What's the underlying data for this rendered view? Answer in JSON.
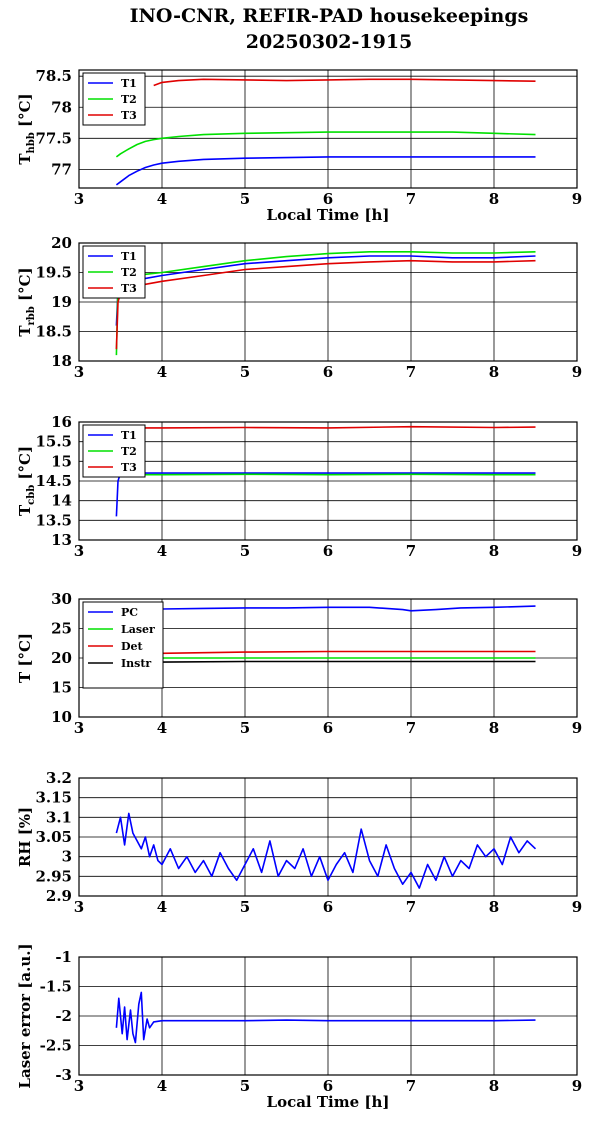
{
  "figure": {
    "title_line1": "INO-CNR, REFIR-PAD housekeepings",
    "title_line2": "20250302-1915"
  },
  "chart_data": [
    {
      "type": "line",
      "id": "hbb",
      "ylabel_main": "T",
      "ylabel_sub": "hbb",
      "ylabel_unit": " [°C]",
      "xlabel": "Local Time [h]",
      "xlim": [
        3,
        9
      ],
      "ylim": [
        76.7,
        78.6
      ],
      "xticks": [
        3,
        4,
        5,
        6,
        7,
        8,
        9
      ],
      "yticks": [
        77,
        77.5,
        78,
        78.5
      ],
      "ytick_labels": [
        "77",
        "77.5",
        "78",
        "78.5"
      ],
      "grid": true,
      "legend": "top-left",
      "series": [
        {
          "name": "T1",
          "color": "#0000ff",
          "x": [
            3.45,
            3.5,
            3.6,
            3.7,
            3.8,
            3.9,
            4.0,
            4.2,
            4.5,
            5.0,
            5.5,
            6.0,
            6.5,
            7.0,
            7.5,
            8.0,
            8.5
          ],
          "y": [
            76.75,
            76.8,
            76.9,
            76.97,
            77.03,
            77.07,
            77.1,
            77.13,
            77.16,
            77.18,
            77.19,
            77.2,
            77.2,
            77.2,
            77.2,
            77.2,
            77.2
          ]
        },
        {
          "name": "T2",
          "color": "#00e000",
          "x": [
            3.45,
            3.5,
            3.6,
            3.7,
            3.8,
            3.9,
            4.0,
            4.2,
            4.5,
            5.0,
            5.5,
            6.0,
            6.5,
            7.0,
            7.5,
            8.0,
            8.5
          ],
          "y": [
            77.2,
            77.25,
            77.33,
            77.4,
            77.45,
            77.48,
            77.5,
            77.53,
            77.56,
            77.58,
            77.59,
            77.6,
            77.6,
            77.6,
            77.6,
            77.58,
            77.56
          ]
        },
        {
          "name": "T3",
          "color": "#e00000",
          "x": [
            3.9,
            4.0,
            4.2,
            4.5,
            5.0,
            5.5,
            6.0,
            6.5,
            7.0,
            7.5,
            8.0,
            8.5
          ],
          "y": [
            78.35,
            78.4,
            78.43,
            78.45,
            78.44,
            78.43,
            78.44,
            78.45,
            78.45,
            78.44,
            78.43,
            78.42
          ]
        }
      ]
    },
    {
      "type": "line",
      "id": "rbb",
      "ylabel_main": "T",
      "ylabel_sub": "rbb",
      "ylabel_unit": " [°C]",
      "xlabel": "",
      "xlim": [
        3,
        9
      ],
      "ylim": [
        18,
        20
      ],
      "xticks": [
        3,
        4,
        5,
        6,
        7,
        8,
        9
      ],
      "yticks": [
        18,
        18.5,
        19,
        19.5,
        20
      ],
      "ytick_labels": [
        "18",
        "18.5",
        "19",
        "19.5",
        "20"
      ],
      "grid": true,
      "legend": "top-left",
      "series": [
        {
          "name": "T1",
          "color": "#0000ff",
          "x": [
            3.45,
            3.47,
            3.5,
            3.6,
            3.8,
            4.0,
            4.5,
            5.0,
            5.5,
            6.0,
            6.5,
            7.0,
            7.5,
            8.0,
            8.5
          ],
          "y": [
            18.6,
            19.2,
            19.3,
            19.35,
            19.4,
            19.45,
            19.55,
            19.65,
            19.7,
            19.75,
            19.78,
            19.78,
            19.75,
            19.75,
            19.78
          ]
        },
        {
          "name": "T2",
          "color": "#00e000",
          "x": [
            3.45,
            3.47,
            3.5,
            3.6,
            3.8,
            4.0,
            4.5,
            5.0,
            5.5,
            6.0,
            6.5,
            7.0,
            7.5,
            8.0,
            8.5
          ],
          "y": [
            18.1,
            19.3,
            19.4,
            19.45,
            19.47,
            19.5,
            19.6,
            19.7,
            19.77,
            19.82,
            19.85,
            19.85,
            19.83,
            19.83,
            19.85
          ]
        },
        {
          "name": "T3",
          "color": "#e00000",
          "x": [
            3.45,
            3.47,
            3.5,
            3.6,
            3.8,
            4.0,
            4.5,
            5.0,
            5.5,
            6.0,
            6.5,
            7.0,
            7.5,
            8.0,
            8.5
          ],
          "y": [
            18.2,
            19.0,
            19.15,
            19.22,
            19.3,
            19.35,
            19.45,
            19.55,
            19.6,
            19.65,
            19.68,
            19.7,
            19.68,
            19.68,
            19.7
          ]
        }
      ]
    },
    {
      "type": "line",
      "id": "cbb",
      "ylabel_main": "T",
      "ylabel_sub": "cbb",
      "ylabel_unit": " [°C]",
      "xlabel": "",
      "xlim": [
        3,
        9
      ],
      "ylim": [
        13,
        16
      ],
      "xticks": [
        3,
        4,
        5,
        6,
        7,
        8,
        9
      ],
      "yticks": [
        13,
        13.5,
        14,
        14.5,
        15,
        15.5,
        16
      ],
      "ytick_labels": [
        "13",
        "13.5",
        "14",
        "14.5",
        "15",
        "15.5",
        "16"
      ],
      "grid": true,
      "legend": "top-left",
      "series": [
        {
          "name": "T1",
          "color": "#0000ff",
          "x": [
            3.45,
            3.47,
            3.5,
            4.0,
            5.0,
            6.0,
            7.0,
            8.0,
            8.5
          ],
          "y": [
            13.6,
            14.5,
            14.7,
            14.7,
            14.7,
            14.7,
            14.7,
            14.7,
            14.7
          ]
        },
        {
          "name": "T2",
          "color": "#00e000",
          "x": [
            3.45,
            3.5,
            4.0,
            5.0,
            6.0,
            7.0,
            8.0,
            8.5
          ],
          "y": [
            14.66,
            14.66,
            14.66,
            14.67,
            14.66,
            14.67,
            14.66,
            14.66
          ]
        },
        {
          "name": "T3",
          "color": "#e00000",
          "x": [
            3.45,
            3.5,
            4.0,
            5.0,
            6.0,
            7.0,
            8.0,
            8.5
          ],
          "y": [
            15.85,
            15.85,
            15.85,
            15.86,
            15.85,
            15.88,
            15.86,
            15.87
          ]
        }
      ]
    },
    {
      "type": "line",
      "id": "temps",
      "ylabel_main": "T [°C]",
      "ylabel_sub": "",
      "ylabel_unit": "",
      "xlabel": "",
      "xlim": [
        3,
        9
      ],
      "ylim": [
        10,
        30
      ],
      "xticks": [
        3,
        4,
        5,
        6,
        7,
        8,
        9
      ],
      "yticks": [
        10,
        15,
        20,
        25,
        30
      ],
      "ytick_labels": [
        "10",
        "15",
        "20",
        "25",
        "30"
      ],
      "grid": true,
      "legend": "top-left",
      "series": [
        {
          "name": "PC",
          "color": "#0000ff",
          "x": [
            3.45,
            3.6,
            3.8,
            4.0,
            4.5,
            5.0,
            5.5,
            6.0,
            6.5,
            6.9,
            7.0,
            7.3,
            7.6,
            8.0,
            8.5
          ],
          "y": [
            27.8,
            28.0,
            28.2,
            28.3,
            28.4,
            28.5,
            28.5,
            28.6,
            28.6,
            28.2,
            28.0,
            28.2,
            28.5,
            28.6,
            28.8
          ]
        },
        {
          "name": "Laser",
          "color": "#00e000",
          "x": [
            3.45,
            4.0,
            5.0,
            6.0,
            7.0,
            8.0,
            8.5
          ],
          "y": [
            19.9,
            20.0,
            20.0,
            20.0,
            20.0,
            20.0,
            20.0
          ]
        },
        {
          "name": "Det",
          "color": "#e00000",
          "x": [
            3.45,
            4.0,
            5.0,
            6.0,
            7.0,
            8.0,
            8.5
          ],
          "y": [
            20.5,
            20.8,
            21.0,
            21.1,
            21.1,
            21.1,
            21.1
          ]
        },
        {
          "name": "Instr",
          "color": "#000000",
          "x": [
            3.45,
            4.0,
            5.0,
            6.0,
            7.0,
            8.0,
            8.5
          ],
          "y": [
            19.2,
            19.3,
            19.4,
            19.4,
            19.4,
            19.4,
            19.4
          ]
        }
      ]
    },
    {
      "type": "line",
      "id": "rh",
      "ylabel_main": "RH [%]",
      "ylabel_sub": "",
      "ylabel_unit": "",
      "xlabel": "",
      "xlim": [
        3,
        9
      ],
      "ylim": [
        2.9,
        3.2
      ],
      "xticks": [
        3,
        4,
        5,
        6,
        7,
        8,
        9
      ],
      "yticks": [
        2.9,
        2.95,
        3,
        3.05,
        3.1,
        3.15,
        3.2
      ],
      "ytick_labels": [
        "2.9",
        "2.95",
        "3",
        "3.05",
        "3.1",
        "3.15",
        "3.2"
      ],
      "grid": true,
      "legend": "none",
      "series": [
        {
          "name": "RH",
          "color": "#0000ff",
          "x": [
            3.45,
            3.5,
            3.55,
            3.6,
            3.65,
            3.7,
            3.75,
            3.8,
            3.85,
            3.9,
            3.95,
            4.0,
            4.1,
            4.2,
            4.3,
            4.4,
            4.5,
            4.6,
            4.7,
            4.8,
            4.9,
            5.0,
            5.1,
            5.2,
            5.3,
            5.4,
            5.5,
            5.6,
            5.7,
            5.8,
            5.9,
            6.0,
            6.1,
            6.2,
            6.3,
            6.4,
            6.5,
            6.6,
            6.7,
            6.8,
            6.9,
            7.0,
            7.1,
            7.2,
            7.3,
            7.4,
            7.5,
            7.6,
            7.7,
            7.8,
            7.9,
            8.0,
            8.1,
            8.2,
            8.3,
            8.4,
            8.5
          ],
          "y": [
            3.06,
            3.1,
            3.03,
            3.11,
            3.06,
            3.04,
            3.02,
            3.05,
            3.0,
            3.03,
            2.99,
            2.98,
            3.02,
            2.97,
            3.0,
            2.96,
            2.99,
            2.95,
            3.01,
            2.97,
            2.94,
            2.98,
            3.02,
            2.96,
            3.04,
            2.95,
            2.99,
            2.97,
            3.02,
            2.95,
            3.0,
            2.94,
            2.98,
            3.01,
            2.96,
            3.07,
            2.99,
            2.95,
            3.03,
            2.97,
            2.93,
            2.96,
            2.92,
            2.98,
            2.94,
            3.0,
            2.95,
            2.99,
            2.97,
            3.03,
            3.0,
            3.02,
            2.98,
            3.05,
            3.01,
            3.04,
            3.02
          ]
        }
      ]
    },
    {
      "type": "line",
      "id": "laser",
      "ylabel_main": "Laser error [a.u.]",
      "ylabel_sub": "",
      "ylabel_unit": "",
      "xlabel": "Local Time [h]",
      "xlim": [
        3,
        9
      ],
      "ylim": [
        -3,
        -1
      ],
      "xticks": [
        3,
        4,
        5,
        6,
        7,
        8,
        9
      ],
      "yticks": [
        -3,
        -2.5,
        -2,
        -1.5,
        -1
      ],
      "ytick_labels": [
        "-3",
        "-2.5",
        "-2",
        "-1.5",
        "-1"
      ],
      "grid": true,
      "legend": "none",
      "series": [
        {
          "name": "Laser error",
          "color": "#0000ff",
          "x": [
            3.45,
            3.48,
            3.52,
            3.55,
            3.58,
            3.62,
            3.65,
            3.68,
            3.72,
            3.75,
            3.78,
            3.82,
            3.85,
            3.9,
            4.0,
            4.5,
            5.0,
            5.5,
            6.0,
            6.5,
            7.0,
            7.5,
            8.0,
            8.5
          ],
          "y": [
            -2.2,
            -1.7,
            -2.3,
            -1.85,
            -2.4,
            -1.9,
            -2.3,
            -2.45,
            -1.8,
            -1.6,
            -2.4,
            -2.05,
            -2.2,
            -2.1,
            -2.08,
            -2.08,
            -2.08,
            -2.07,
            -2.08,
            -2.08,
            -2.08,
            -2.08,
            -2.08,
            -2.07
          ]
        }
      ]
    }
  ]
}
